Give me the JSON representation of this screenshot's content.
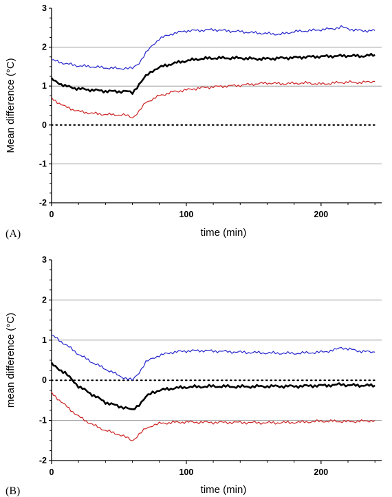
{
  "chart_data": [
    {
      "type": "line",
      "panel_label": "(A)",
      "xlabel": "time (min)",
      "ylabel": "Mean difference (°C)",
      "xlim": [
        0,
        245
      ],
      "ylim": [
        -2,
        3
      ],
      "xticks": [
        0,
        100,
        200
      ],
      "yticks": [
        -2,
        -1,
        0,
        1,
        2,
        3
      ],
      "grid": "horizontal at -1, 1, 2; dotted line at 0",
      "series": [
        {
          "color": "#2222cc",
          "x": [
            0,
            10,
            20,
            30,
            40,
            50,
            55,
            60,
            65,
            70,
            75,
            80,
            90,
            100,
            110,
            120,
            130,
            140,
            150,
            160,
            170,
            180,
            190,
            200,
            210,
            215,
            220,
            230,
            240
          ],
          "y": [
            1.67,
            1.58,
            1.52,
            1.5,
            1.47,
            1.45,
            1.46,
            1.45,
            1.6,
            1.85,
            2.05,
            2.22,
            2.35,
            2.42,
            2.43,
            2.45,
            2.42,
            2.4,
            2.37,
            2.35,
            2.33,
            2.4,
            2.42,
            2.45,
            2.48,
            2.52,
            2.47,
            2.42,
            2.43
          ]
        },
        {
          "color": "#000000",
          "x": [
            0,
            10,
            20,
            30,
            40,
            50,
            55,
            60,
            65,
            70,
            75,
            80,
            90,
            100,
            110,
            120,
            130,
            140,
            150,
            160,
            170,
            180,
            190,
            200,
            210,
            220,
            230,
            240
          ],
          "y": [
            1.17,
            1.0,
            0.93,
            0.9,
            0.87,
            0.86,
            0.87,
            0.82,
            1.05,
            1.25,
            1.4,
            1.48,
            1.58,
            1.65,
            1.7,
            1.72,
            1.72,
            1.72,
            1.7,
            1.7,
            1.72,
            1.73,
            1.75,
            1.76,
            1.77,
            1.78,
            1.77,
            1.8
          ]
        },
        {
          "color": "#cc2222",
          "x": [
            0,
            10,
            20,
            30,
            40,
            50,
            55,
            60,
            65,
            70,
            80,
            90,
            100,
            110,
            120,
            130,
            140,
            150,
            160,
            170,
            180,
            190,
            200,
            210,
            220,
            230,
            240
          ],
          "y": [
            0.68,
            0.47,
            0.35,
            0.3,
            0.27,
            0.26,
            0.25,
            0.19,
            0.35,
            0.58,
            0.75,
            0.85,
            0.9,
            0.95,
            0.98,
            1.0,
            1.02,
            1.05,
            1.08,
            1.06,
            1.07,
            1.08,
            1.05,
            1.08,
            1.1,
            1.09,
            1.12
          ]
        }
      ]
    },
    {
      "type": "line",
      "panel_label": "(B)",
      "xlabel": "time (min)",
      "ylabel": "mean difference (°C)",
      "xlim": [
        0,
        245
      ],
      "ylim": [
        -2,
        3
      ],
      "xticks": [
        0,
        100,
        200
      ],
      "yticks": [
        -2,
        -1,
        0,
        1,
        2,
        3
      ],
      "grid": "horizontal at -1, 1, 2; dotted line at 0",
      "series": [
        {
          "color": "#2222cc",
          "x": [
            0,
            10,
            20,
            30,
            40,
            50,
            55,
            60,
            65,
            70,
            75,
            80,
            90,
            100,
            110,
            120,
            140,
            160,
            180,
            200,
            210,
            215,
            220,
            230,
            240
          ],
          "y": [
            1.12,
            0.9,
            0.65,
            0.45,
            0.28,
            0.12,
            0.05,
            0.0,
            0.2,
            0.45,
            0.55,
            0.62,
            0.7,
            0.73,
            0.74,
            0.73,
            0.7,
            0.68,
            0.67,
            0.7,
            0.75,
            0.82,
            0.78,
            0.72,
            0.7
          ]
        },
        {
          "color": "#000000",
          "x": [
            0,
            10,
            15,
            20,
            30,
            40,
            50,
            55,
            60,
            65,
            70,
            75,
            80,
            90,
            100,
            120,
            140,
            160,
            180,
            200,
            210,
            215,
            220,
            230,
            240
          ],
          "y": [
            0.4,
            0.18,
            0.02,
            -0.15,
            -0.35,
            -0.55,
            -0.65,
            -0.68,
            -0.75,
            -0.6,
            -0.42,
            -0.3,
            -0.25,
            -0.2,
            -0.17,
            -0.15,
            -0.16,
            -0.15,
            -0.15,
            -0.13,
            -0.12,
            -0.1,
            -0.12,
            -0.13,
            -0.13
          ]
        },
        {
          "color": "#cc2222",
          "x": [
            0,
            10,
            20,
            30,
            40,
            50,
            55,
            60,
            65,
            70,
            75,
            80,
            90,
            100,
            120,
            140,
            160,
            180,
            200,
            210,
            220,
            230,
            240
          ],
          "y": [
            -0.32,
            -0.62,
            -0.9,
            -1.1,
            -1.25,
            -1.35,
            -1.42,
            -1.5,
            -1.35,
            -1.2,
            -1.12,
            -1.08,
            -1.05,
            -1.04,
            -1.05,
            -1.05,
            -1.06,
            -1.05,
            -1.02,
            -1.02,
            -1.03,
            -1.02,
            -1.0
          ]
        }
      ]
    }
  ]
}
